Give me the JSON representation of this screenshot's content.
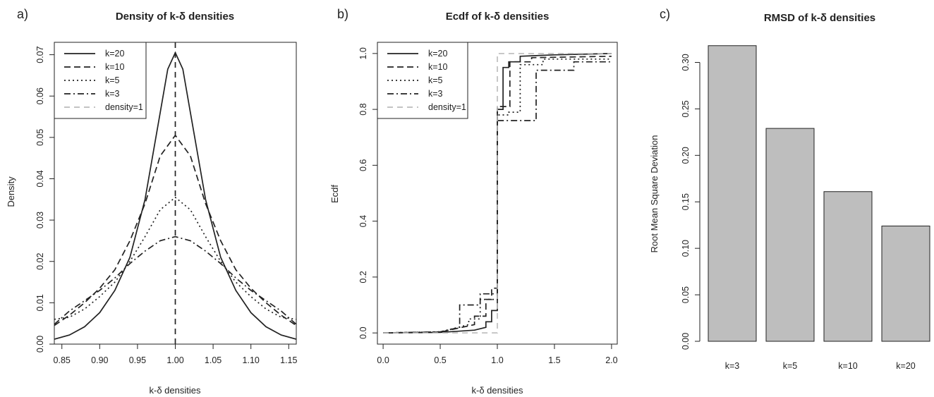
{
  "panels": {
    "a": {
      "letter": "a)",
      "title": "Density of k-δ densities",
      "xlabel": "k-δ densities",
      "ylabel": "Density",
      "legend": [
        "k=20",
        "k=10",
        "k=5",
        "k=3",
        "density=1"
      ]
    },
    "b": {
      "letter": "b)",
      "title": "Ecdf of k-δ densities",
      "xlabel": "k-δ densities",
      "ylabel": "Ecdf",
      "legend": [
        "k=20",
        "k=10",
        "k=5",
        "k=3",
        "density=1"
      ]
    },
    "c": {
      "letter": "c)",
      "title": "RMSD of k-δ densities",
      "ylabel": "Root Mean Square Deviation"
    }
  },
  "chart_data": [
    {
      "type": "line",
      "title": "Density of k-δ densities",
      "xlabel": "k-δ densities",
      "ylabel": "Density",
      "xlim": [
        0.84,
        1.16
      ],
      "ylim": [
        0,
        0.073
      ],
      "xticks": [
        0.85,
        0.9,
        0.95,
        1.0,
        1.05,
        1.1,
        1.15
      ],
      "xtick_labels": [
        "0.85",
        "0.90",
        "0.95",
        "1.00",
        "1.05",
        "1.10",
        "1.15"
      ],
      "yticks": [
        0.0,
        0.01,
        0.02,
        0.03,
        0.04,
        0.05,
        0.06,
        0.07
      ],
      "ytick_labels": [
        "0.00",
        "0.01",
        "0.02",
        "0.03",
        "0.04",
        "0.05",
        "0.06",
        "0.07"
      ],
      "legend_position": "top-left",
      "series": [
        {
          "name": "k=20",
          "style": "solid",
          "x": [
            0.84,
            0.86,
            0.88,
            0.9,
            0.92,
            0.94,
            0.96,
            0.98,
            0.99,
            1.0,
            1.01,
            1.02,
            1.04,
            1.06,
            1.08,
            1.1,
            1.12,
            1.14,
            1.16
          ],
          "y": [
            0.0012,
            0.0022,
            0.0042,
            0.0076,
            0.013,
            0.021,
            0.035,
            0.056,
            0.0665,
            0.0705,
            0.0665,
            0.056,
            0.035,
            0.021,
            0.013,
            0.0076,
            0.0042,
            0.0022,
            0.0012
          ]
        },
        {
          "name": "k=10",
          "style": "dashed",
          "x": [
            0.84,
            0.86,
            0.88,
            0.9,
            0.92,
            0.94,
            0.96,
            0.98,
            1.0,
            1.02,
            1.04,
            1.06,
            1.08,
            1.1,
            1.12,
            1.14,
            1.16
          ],
          "y": [
            0.0045,
            0.007,
            0.01,
            0.0135,
            0.018,
            0.025,
            0.034,
            0.0455,
            0.0505,
            0.0455,
            0.034,
            0.025,
            0.018,
            0.0135,
            0.01,
            0.007,
            0.0045
          ]
        },
        {
          "name": "k=5",
          "style": "dotted",
          "x": [
            0.84,
            0.86,
            0.88,
            0.9,
            0.92,
            0.94,
            0.96,
            0.98,
            1.0,
            1.02,
            1.04,
            1.06,
            1.08,
            1.1,
            1.12,
            1.14,
            1.16
          ],
          "y": [
            0.006,
            0.0065,
            0.0085,
            0.0115,
            0.015,
            0.02,
            0.026,
            0.0325,
            0.0355,
            0.0325,
            0.026,
            0.02,
            0.015,
            0.0115,
            0.0085,
            0.0065,
            0.006
          ]
        },
        {
          "name": "k=3",
          "style": "dashdot",
          "x": [
            0.84,
            0.86,
            0.88,
            0.9,
            0.92,
            0.94,
            0.96,
            0.98,
            1.0,
            1.02,
            1.04,
            1.06,
            1.08,
            1.1,
            1.12,
            1.14,
            1.16
          ],
          "y": [
            0.0048,
            0.008,
            0.0105,
            0.013,
            0.016,
            0.0195,
            0.0225,
            0.025,
            0.026,
            0.025,
            0.0225,
            0.0195,
            0.016,
            0.013,
            0.0105,
            0.008,
            0.0048
          ]
        },
        {
          "name": "density=1",
          "style": "dashed-vertical",
          "x": [
            1.0,
            1.0
          ],
          "y": [
            0.0,
            0.073
          ]
        }
      ]
    },
    {
      "type": "line",
      "title": "Ecdf of k-δ densities",
      "xlabel": "k-δ densities",
      "ylabel": "Ecdf",
      "xlim": [
        -0.05,
        2.05
      ],
      "ylim": [
        -0.04,
        1.04
      ],
      "xticks": [
        0.0,
        0.5,
        1.0,
        1.5,
        2.0
      ],
      "xtick_labels": [
        "0.0",
        "0.5",
        "1.0",
        "1.5",
        "2.0"
      ],
      "yticks": [
        0.0,
        0.2,
        0.4,
        0.6,
        0.8,
        1.0
      ],
      "ytick_labels": [
        "0.0",
        "0.2",
        "0.4",
        "0.6",
        "0.8",
        "1.0"
      ],
      "legend_position": "top-left",
      "series": [
        {
          "name": "k=20",
          "style": "solid",
          "x": [
            0.0,
            0.5,
            0.8,
            0.9,
            0.9,
            0.95,
            0.95,
            1.0,
            1.0,
            1.05,
            1.05,
            1.1,
            1.1,
            1.2,
            1.2,
            1.5,
            2.0
          ],
          "y": [
            0.0,
            0.002,
            0.01,
            0.02,
            0.04,
            0.04,
            0.08,
            0.08,
            0.8,
            0.8,
            0.95,
            0.95,
            0.97,
            0.97,
            0.99,
            0.995,
            1.0
          ]
        },
        {
          "name": "k=10",
          "style": "dashed",
          "x": [
            0.0,
            0.5,
            0.8,
            0.8,
            0.9,
            0.9,
            0.95,
            0.95,
            1.0,
            1.0,
            1.11,
            1.11,
            1.3,
            1.3,
            2.0
          ],
          "y": [
            0.0,
            0.003,
            0.03,
            0.06,
            0.06,
            0.12,
            0.12,
            0.16,
            0.16,
            0.81,
            0.81,
            0.97,
            0.97,
            0.985,
            0.99
          ]
        },
        {
          "name": "k=5",
          "style": "dotted",
          "x": [
            0.0,
            0.5,
            0.75,
            0.75,
            0.85,
            0.85,
            1.0,
            1.0,
            1.1,
            1.1,
            1.2,
            1.2,
            1.4,
            1.4,
            2.0
          ],
          "y": [
            0.0,
            0.004,
            0.03,
            0.05,
            0.05,
            0.12,
            0.12,
            0.78,
            0.78,
            0.79,
            0.79,
            0.96,
            0.96,
            0.98,
            0.98
          ]
        },
        {
          "name": "k=3",
          "style": "dashdot",
          "x": [
            0.0,
            0.5,
            0.67,
            0.67,
            0.85,
            0.85,
            1.0,
            1.0,
            1.2,
            1.2,
            1.34,
            1.34,
            1.67,
            1.67,
            2.0
          ],
          "y": [
            0.0,
            0.004,
            0.02,
            0.1,
            0.1,
            0.14,
            0.14,
            0.76,
            0.76,
            0.76,
            0.76,
            0.94,
            0.94,
            0.97,
            0.97
          ]
        },
        {
          "name": "density=1",
          "style": "dashed-gray",
          "x": [
            0.0,
            1.0,
            1.0,
            2.0
          ],
          "y": [
            0.0,
            0.0,
            1.0,
            1.0
          ]
        }
      ]
    },
    {
      "type": "bar",
      "title": "RMSD of k-δ densities",
      "xlabel": "",
      "ylabel": "Root Mean Square Deviation",
      "categories": [
        "k=3",
        "k=5",
        "k=10",
        "k=20"
      ],
      "values": [
        0.318,
        0.229,
        0.161,
        0.124
      ],
      "ylim": [
        0,
        0.32
      ],
      "yticks": [
        0.0,
        0.05,
        0.1,
        0.15,
        0.2,
        0.25,
        0.3
      ],
      "ytick_labels": [
        "0.00",
        "0.05",
        "0.10",
        "0.15",
        "0.20",
        "0.25",
        "0.30"
      ],
      "bar_color": "#bebebe"
    }
  ],
  "colors": {
    "ink": "#222222",
    "reference_gray": "#bbbbbb",
    "bar_fill": "#bebebe"
  }
}
